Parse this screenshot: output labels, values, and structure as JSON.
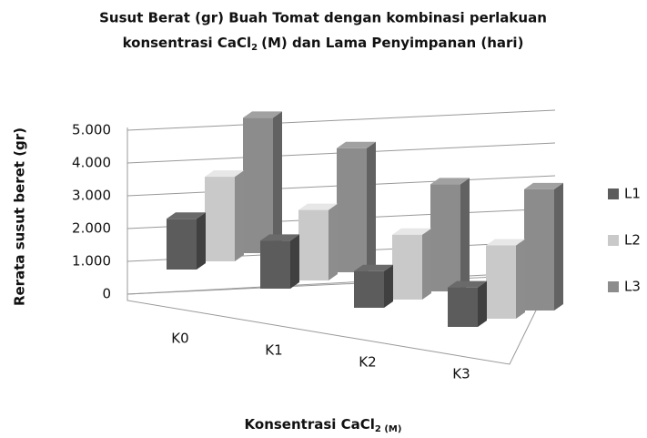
{
  "chart_data": {
    "type": "bar3d",
    "title": [
      "Susut Berat (gr) Buah Tomat dengan kombinasi perlakuan",
      "konsentrasi CaCl",
      "2",
      "(M) dan Lama Penyimpanan (hari)"
    ],
    "x_label": [
      "Konsentrasi CaCl",
      "2 (M)"
    ],
    "y_label": "Rerata susut beret (gr)",
    "categories": [
      "K0",
      "K1",
      "K2",
      "K3"
    ],
    "series": [
      {
        "name": "L1",
        "color": "#5c5c5c",
        "values": [
          1.8,
          1.7,
          1.3,
          1.4
        ]
      },
      {
        "name": "L2",
        "color": "#c9c9c9",
        "values": [
          3.0,
          2.5,
          2.3,
          2.6
        ]
      },
      {
        "name": "L3",
        "color": "#8c8c8c",
        "values": [
          4.8,
          4.4,
          3.8,
          4.3
        ]
      }
    ],
    "ylim": [
      0,
      5
    ],
    "yticks": [
      0,
      {
        "value": 1,
        "label": "1.000"
      },
      {
        "value": 2,
        "label": "2.000"
      },
      {
        "value": 3,
        "label": "3.000"
      },
      {
        "value": 4,
        "label": "4.000"
      },
      {
        "value": 5,
        "label": "5.000"
      }
    ],
    "grid": true,
    "legend": "right"
  }
}
